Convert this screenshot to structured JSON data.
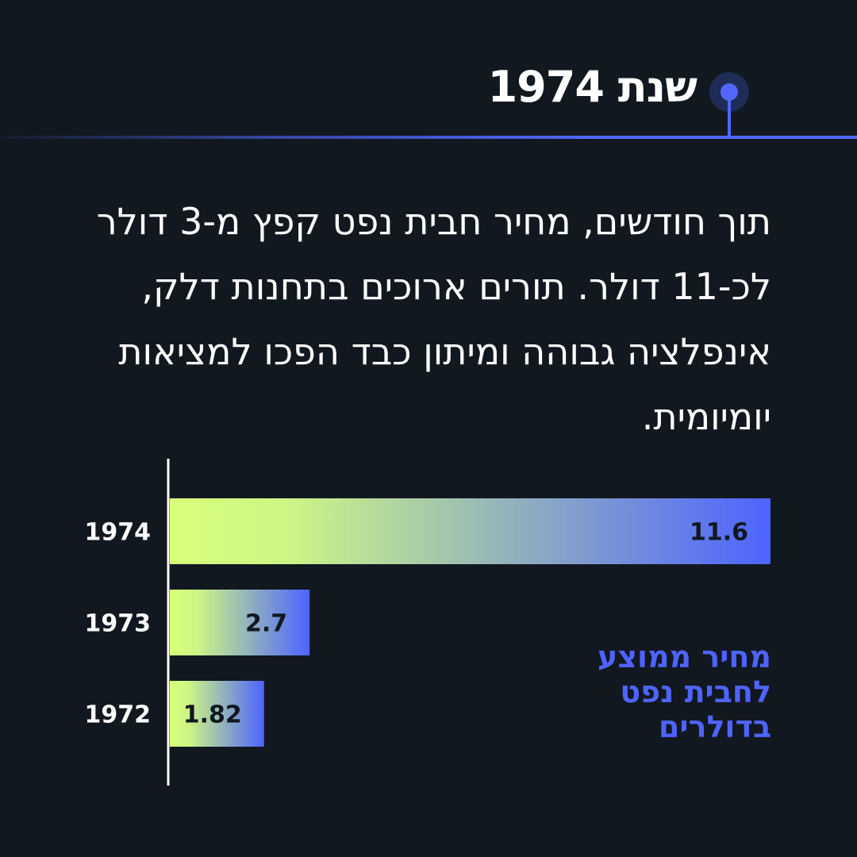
{
  "header": {
    "title": "שנת 1974",
    "accent_color": "#5167ff",
    "icon": "timeline-dot-icon"
  },
  "body": {
    "text": "תוך חודשים, מחיר חבית נפט קפץ מ-3 דולר לכ-11 דולר. תורים ארוכים בתחנות דלק, אינפלציה גבוהה ומיתון כבד הפכו למציאות יומיומית."
  },
  "chart_data": {
    "type": "bar",
    "orientation": "horizontal",
    "categories": [
      "1974",
      "1973",
      "1972"
    ],
    "values": [
      11.6,
      2.7,
      1.82
    ],
    "data_labels": [
      "11.6",
      "2.7",
      "1.82"
    ],
    "legend": "מחיר ממוצע לחבית נפט בדולרים",
    "xlim": [
      0,
      11.6
    ],
    "grid": false,
    "colors": {
      "gradient_start": "#d8ff7a",
      "gradient_end": "#4d63ff",
      "label": "#111820",
      "axis": "#ffffff",
      "legend": "#4f63ff"
    }
  }
}
